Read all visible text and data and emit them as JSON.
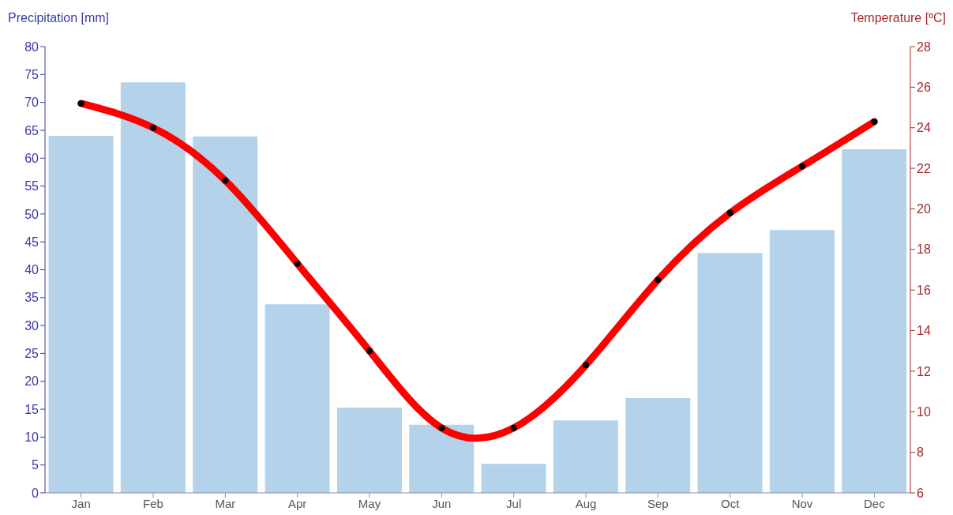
{
  "chart_data": {
    "type": "bar",
    "ylabel": "Precipitation [mm]",
    "y2label": "Temperature [ºC]",
    "categories": [
      "Jan",
      "Feb",
      "Mar",
      "Apr",
      "May",
      "Jun",
      "Jul",
      "Aug",
      "Sep",
      "Oct",
      "Nov",
      "Dec"
    ],
    "series": [
      {
        "color": "#b4d3ea",
        "values": [
          64.0,
          73.6,
          63.9,
          33.8,
          15.3,
          12.2,
          5.2,
          13.0,
          17.0,
          43.0,
          47.1,
          61.6
        ]
      },
      {
        "type": "line",
        "axis": "y2",
        "color": "#ff0000",
        "marker": "circle",
        "line_style": "solid",
        "values": [
          25.2,
          24.0,
          21.4,
          17.3,
          13.0,
          9.2,
          9.2,
          12.3,
          16.5,
          19.8,
          22.1,
          24.3
        ]
      }
    ],
    "ylim": [
      0,
      80
    ],
    "yticks": [
      0,
      5,
      10,
      15,
      20,
      25,
      30,
      35,
      40,
      45,
      50,
      55,
      60,
      65,
      70,
      75,
      80
    ],
    "y2lim": [
      6,
      28
    ],
    "y2ticks": [
      6,
      8,
      10,
      12,
      14,
      16,
      18,
      20,
      22,
      24,
      26,
      28
    ],
    "grid": false
  }
}
